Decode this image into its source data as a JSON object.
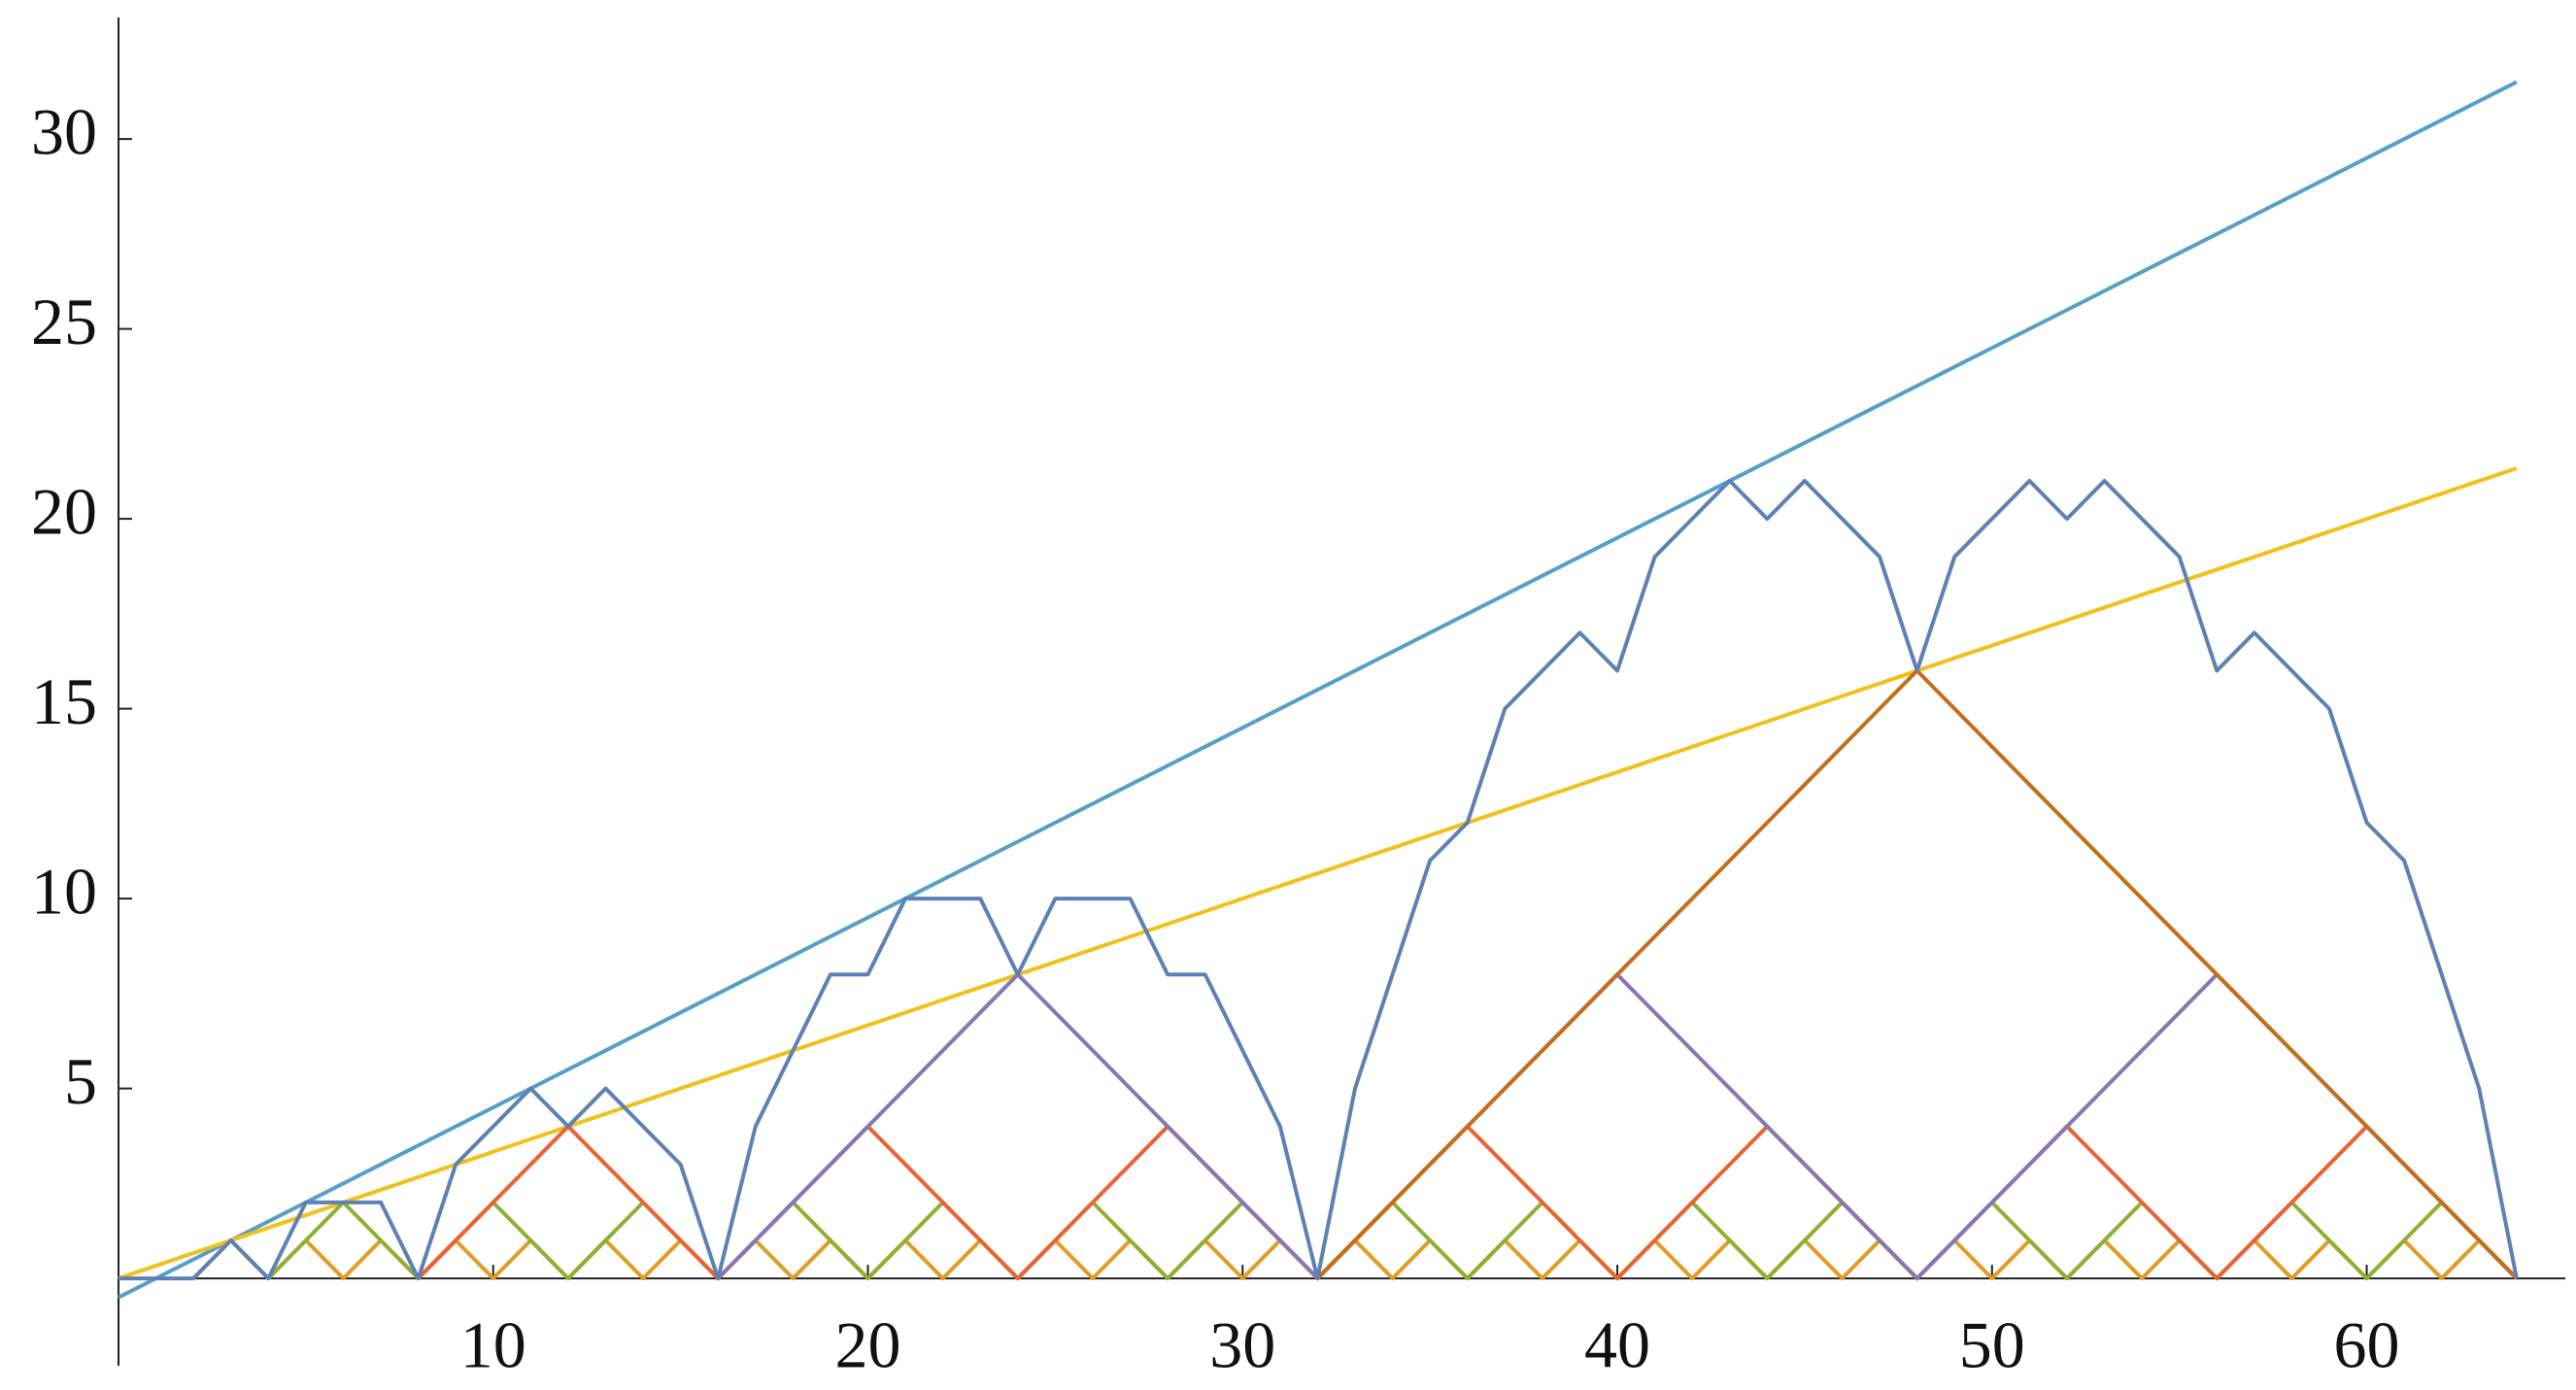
{
  "chart_data": {
    "type": "line",
    "xlim": [
      0,
      65.3
    ],
    "ylim": [
      -2.3,
      33.2
    ],
    "xticks": [
      10,
      20,
      30,
      40,
      50,
      60
    ],
    "yticks": [
      5,
      10,
      15,
      20,
      25,
      30
    ],
    "series": [
      {
        "color": "#56a0c8",
        "x": [
          0,
          64
        ],
        "values": [
          -0.5,
          31.5
        ]
      },
      {
        "color": "#f2c01a",
        "x": [
          0,
          64
        ],
        "values": [
          0,
          21.33
        ]
      },
      {
        "color": "#e19c24",
        "x": [
          2,
          3,
          4,
          5,
          6,
          7,
          8,
          9,
          10,
          11,
          12,
          13,
          14,
          15,
          16,
          17,
          18,
          19,
          20,
          21,
          22,
          23,
          24,
          25,
          26,
          27,
          28,
          29,
          30,
          31,
          32,
          33,
          34,
          35,
          36,
          37,
          38,
          39,
          40,
          41,
          42,
          43,
          44,
          45,
          46,
          47,
          48,
          49,
          50,
          51,
          52,
          53,
          54,
          55,
          56,
          57,
          58,
          59,
          60,
          61,
          62,
          63,
          64
        ],
        "values": [
          0,
          1,
          0,
          1,
          0,
          1,
          0,
          1,
          0,
          1,
          0,
          1,
          0,
          1,
          0,
          1,
          0,
          1,
          0,
          1,
          0,
          1,
          0,
          1,
          0,
          1,
          0,
          1,
          0,
          1,
          0,
          1,
          0,
          1,
          0,
          1,
          0,
          1,
          0,
          1,
          0,
          1,
          0,
          1,
          0,
          1,
          0,
          1,
          0,
          1,
          0,
          1,
          0,
          1,
          0,
          1,
          0,
          1,
          0,
          1,
          0,
          1,
          0
        ]
      },
      {
        "color": "#8fb032",
        "x": [
          4,
          6,
          8,
          10,
          12,
          14,
          16,
          18,
          20,
          22,
          24,
          26,
          28,
          30,
          32,
          34,
          36,
          38,
          40,
          42,
          44,
          46,
          48,
          50,
          52,
          54,
          56,
          58,
          60,
          62,
          64
        ],
        "values": [
          0,
          2,
          0,
          2,
          0,
          2,
          0,
          2,
          0,
          2,
          0,
          2,
          0,
          2,
          0,
          2,
          0,
          2,
          0,
          2,
          0,
          2,
          0,
          2,
          0,
          2,
          0,
          2,
          0,
          2,
          0
        ]
      },
      {
        "color": "#eb6235",
        "x": [
          8,
          12,
          16,
          20,
          24,
          28,
          32,
          36,
          40,
          44,
          48,
          52,
          56,
          60,
          64
        ],
        "values": [
          0,
          4,
          0,
          4,
          0,
          4,
          0,
          4,
          0,
          4,
          0,
          4,
          0,
          4,
          0
        ]
      },
      {
        "color": "#8778b3",
        "x": [
          16,
          24,
          32,
          40,
          48,
          56,
          64
        ],
        "values": [
          0,
          8,
          0,
          8,
          0,
          8,
          0
        ]
      },
      {
        "color": "#c56e1a",
        "x": [
          32,
          48,
          64
        ],
        "values": [
          0,
          16,
          0
        ]
      },
      {
        "color": "#5e81b5",
        "x": [
          0,
          1,
          2,
          3,
          4,
          5,
          6,
          7,
          8,
          9,
          10,
          11,
          12,
          13,
          14,
          15,
          16,
          17,
          18,
          19,
          20,
          21,
          22,
          23,
          24,
          25,
          26,
          27,
          28,
          29,
          30,
          31,
          32,
          33,
          34,
          35,
          36,
          37,
          38,
          39,
          40,
          41,
          42,
          43,
          44,
          45,
          46,
          47,
          48,
          49,
          50,
          51,
          52,
          53,
          54,
          55,
          56,
          57,
          58,
          59,
          60,
          61,
          62,
          63,
          64
        ],
        "values": [
          0,
          0,
          0,
          1,
          0,
          2,
          2,
          2,
          0,
          3,
          4,
          5,
          4,
          5,
          4,
          3,
          0,
          4,
          6,
          8,
          8,
          10,
          10,
          10,
          8,
          10,
          10,
          10,
          8,
          8,
          6,
          4,
          0,
          5,
          8,
          11,
          12,
          15,
          16,
          17,
          16,
          19,
          20,
          21,
          20,
          21,
          20,
          19,
          16,
          19,
          20,
          21,
          20,
          21,
          20,
          19,
          16,
          17,
          16,
          15,
          12,
          11,
          8,
          5,
          0
        ]
      }
    ]
  }
}
